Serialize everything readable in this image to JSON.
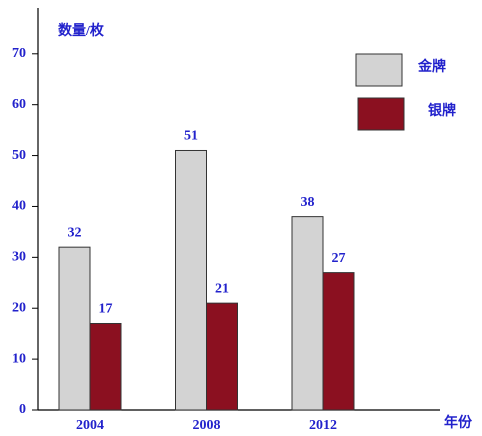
{
  "chart_data": {
    "type": "bar",
    "y_label": "数量/枚",
    "x_label": "年份",
    "categories": [
      "2004",
      "2008",
      "2012"
    ],
    "series": [
      {
        "name": "金牌",
        "color": "#d3d3d3",
        "values": [
          32,
          51,
          38
        ]
      },
      {
        "name": "银牌",
        "color": "#8b1020",
        "values": [
          17,
          21,
          27
        ]
      }
    ],
    "ylim": [
      0,
      79
    ],
    "yticks": [
      0,
      10,
      20,
      30,
      40,
      50,
      60,
      70
    ],
    "grid": false
  }
}
